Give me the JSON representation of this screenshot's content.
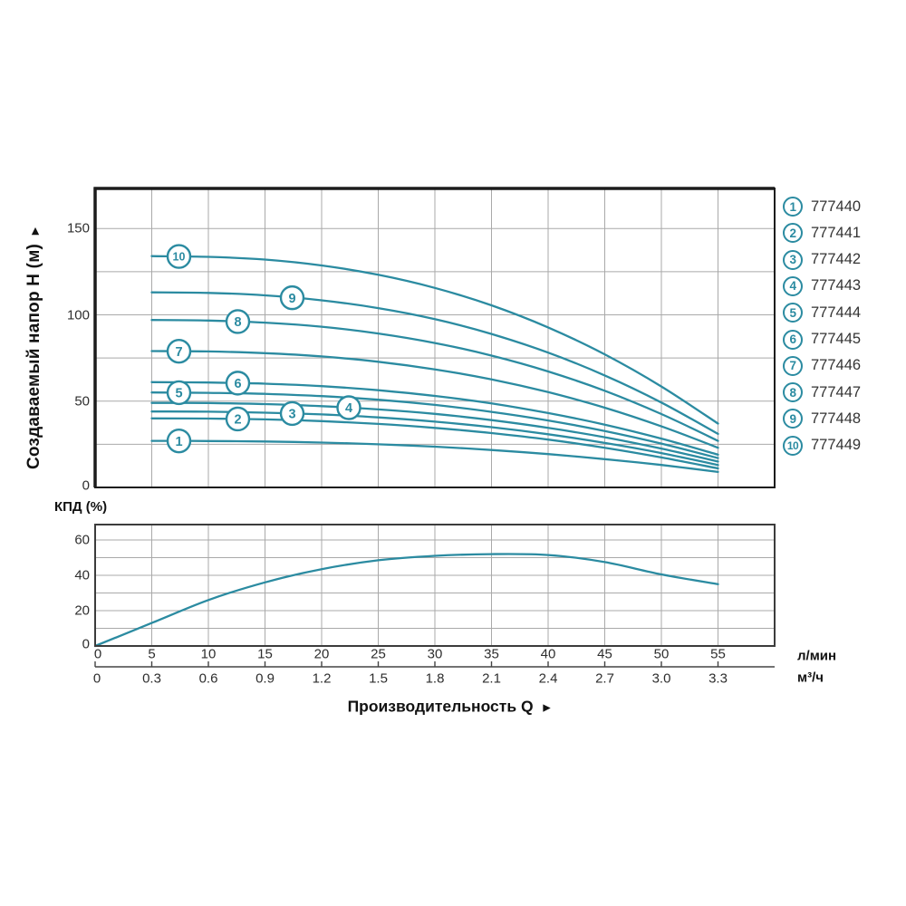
{
  "labels": {
    "head_axis": "Создаваемый напор H (м)",
    "head_axis_arrow": "►",
    "flow_axis": "Производительность Q",
    "flow_axis_arrow": "►",
    "efficiency_axis": "КПД (%)",
    "unit_lmin": "л/мин",
    "unit_m3h": "м³/ч"
  },
  "colors": {
    "curve": "#2b8ba1",
    "grid": "#a9a9a9",
    "main_border": "#1c1c1c",
    "eff_border": "#3c3c3c",
    "axis2_line": "#444444",
    "label_text": "#121212",
    "tick_text": "#2e2e2e",
    "legend_text": "#333333"
  },
  "chart_data": [
    {
      "type": "line",
      "title": "",
      "ylabel": "Создаваемый напор H (м)",
      "xlabel": "Производительность Q",
      "x_units_primary": "л/мин",
      "x_units_secondary": "м³/ч",
      "xlim": [
        0,
        60
      ],
      "ylim": [
        0,
        173
      ],
      "grid": true,
      "y_ticks": [
        "0",
        "50",
        "100",
        "150"
      ],
      "y_tick_values": [
        0,
        50,
        100,
        150
      ],
      "x_ticks_lmin": [
        "0",
        "5",
        "10",
        "15",
        "20",
        "25",
        "30",
        "35",
        "40",
        "45",
        "50",
        "55"
      ],
      "x_tick_values": [
        0,
        5,
        10,
        15,
        20,
        25,
        30,
        35,
        40,
        45,
        50,
        55
      ],
      "x_ticks_m3h": [
        "0",
        "0.3",
        "0.6",
        "0.9",
        "1.2",
        "1.5",
        "1.8",
        "2.1",
        "2.4",
        "2.7",
        "3.0",
        "3.3"
      ],
      "x": [
        5,
        10,
        15,
        20,
        25,
        30,
        35,
        40,
        45,
        50,
        55
      ],
      "series": [
        {
          "name": "1",
          "model": "777440",
          "label_q": 7.4,
          "values": [
            27,
            26.9,
            26.6,
            26.0,
            25.0,
            23.6,
            21.7,
            19.3,
            16.4,
            13.0,
            9
          ]
        },
        {
          "name": "2",
          "model": "777441",
          "label_q": 12.6,
          "values": [
            40,
            39.9,
            39.4,
            38.4,
            36.8,
            34.5,
            31.5,
            27.7,
            23.0,
            17.4,
            11
          ]
        },
        {
          "name": "3",
          "model": "777442",
          "label_q": 17.4,
          "values": [
            44,
            43.9,
            43.3,
            42.3,
            40.6,
            38.1,
            34.9,
            30.8,
            25.8,
            19.9,
            13
          ]
        },
        {
          "name": "4",
          "model": "777443",
          "label_q": 22.4,
          "values": [
            49,
            48.9,
            48.3,
            47.1,
            45.2,
            42.6,
            39.0,
            34.5,
            29.1,
            22.5,
            15
          ]
        },
        {
          "name": "5",
          "model": "777444",
          "label_q": 7.4,
          "values": [
            55,
            54.8,
            54.2,
            52.9,
            50.8,
            47.8,
            43.8,
            38.8,
            32.7,
            25.4,
            17
          ]
        },
        {
          "name": "6",
          "model": "777445",
          "label_q": 12.6,
          "values": [
            61,
            60.8,
            60.1,
            58.7,
            56.3,
            53.0,
            48.7,
            43.1,
            36.4,
            28.3,
            19
          ]
        },
        {
          "name": "7",
          "model": "777446",
          "label_q": 7.4,
          "values": [
            79,
            78.8,
            77.8,
            75.9,
            72.8,
            68.4,
            62.6,
            55.2,
            46.2,
            35.4,
            23
          ]
        },
        {
          "name": "8",
          "model": "777447",
          "label_q": 12.6,
          "values": [
            97,
            96.7,
            95.5,
            93.1,
            89.2,
            83.7,
            76.4,
            67.2,
            56.0,
            42.5,
            27
          ]
        },
        {
          "name": "9",
          "model": "777448",
          "label_q": 17.4,
          "values": [
            113,
            112.7,
            111.3,
            108.4,
            103.9,
            97.5,
            88.9,
            78.1,
            64.9,
            49.2,
            31
          ]
        },
        {
          "name": "10",
          "model": "777449",
          "label_q": 7.4,
          "values": [
            134,
            133.6,
            132.0,
            128.6,
            123.2,
            115.6,
            105.5,
            92.7,
            77.1,
            58.5,
            37
          ]
        }
      ],
      "legend_position": "right"
    },
    {
      "type": "line",
      "title": "КПД (%)",
      "xlim": [
        0,
        60
      ],
      "ylim": [
        0,
        69
      ],
      "grid": true,
      "y_ticks": [
        "0",
        "20",
        "40",
        "60"
      ],
      "y_tick_values": [
        0,
        20,
        40,
        60
      ],
      "x": [
        0,
        5,
        10,
        15,
        20,
        25,
        30,
        35,
        40,
        45,
        50,
        55
      ],
      "values": [
        0,
        13,
        26,
        36,
        43.5,
        48.5,
        51,
        52,
        51.5,
        47.5,
        40.5,
        35
      ]
    }
  ]
}
